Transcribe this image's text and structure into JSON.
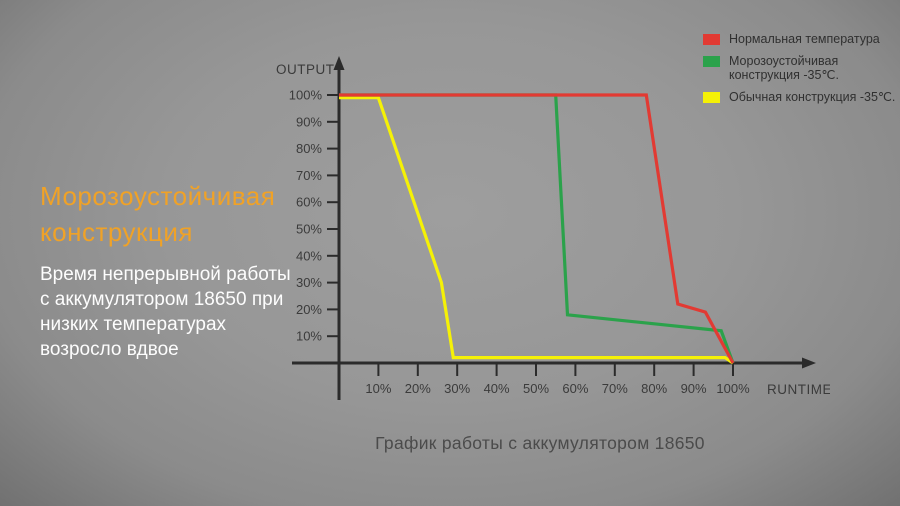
{
  "intro": {
    "heading": "Морозоустойчивая конструкция",
    "description": "Время непрерывной работы с аккумулятором 18650 при низких температурах возросло вдвое"
  },
  "caption": "График работы с аккумулятором 18650",
  "colors": {
    "heading": "#f0a227",
    "description": "#fdfdfd",
    "caption": "#4b4b4b",
    "axis": "#2b2b2b",
    "tick_label": "#3b3b3b"
  },
  "legend": {
    "items": [
      {
        "label": "Нормальная температура",
        "color": "#e23a33"
      },
      {
        "label": "Морозоустойчивая конструкция -35℃.",
        "color": "#2ba24b"
      },
      {
        "label": "Обычная конструкция -35℃.",
        "color": "#f5f106"
      }
    ]
  },
  "chart_data": {
    "type": "line",
    "title": "График работы с аккумулятором 18650",
    "xlabel": "RUNTIME",
    "ylabel": "OUTPUT",
    "xlim": [
      0,
      100
    ],
    "ylim": [
      0,
      100
    ],
    "grid": false,
    "legend_position": "top-right",
    "x_tick_values": [
      10,
      20,
      30,
      40,
      50,
      60,
      70,
      80,
      90,
      100
    ],
    "x_tick_labels": [
      "10%",
      "20%",
      "30%",
      "40%",
      "50%",
      "60%",
      "70%",
      "80%",
      "90%",
      "100%"
    ],
    "y_tick_values": [
      10,
      20,
      30,
      40,
      50,
      60,
      70,
      80,
      90,
      100
    ],
    "y_tick_labels": [
      "10%",
      "20%",
      "30%",
      "40%",
      "50%",
      "60%",
      "70%",
      "80%",
      "90%",
      "100%"
    ],
    "series": [
      {
        "name": "Нормальная температура",
        "color": "#e23a33",
        "points": [
          [
            0,
            100
          ],
          [
            78,
            100
          ],
          [
            86,
            22
          ],
          [
            93,
            19
          ],
          [
            100,
            0
          ]
        ]
      },
      {
        "name": "Морозоустойчивая конструкция -35℃.",
        "color": "#2ba24b",
        "points": [
          [
            0,
            100
          ],
          [
            55,
            100
          ],
          [
            58,
            18
          ],
          [
            97,
            12
          ],
          [
            100,
            0
          ]
        ]
      },
      {
        "name": "Обычная конструкция -35℃.",
        "color": "#f5f106",
        "points": [
          [
            0,
            99
          ],
          [
            10,
            99
          ],
          [
            26,
            30
          ],
          [
            29,
            2
          ],
          [
            98,
            2
          ],
          [
            100,
            0
          ]
        ]
      }
    ]
  }
}
